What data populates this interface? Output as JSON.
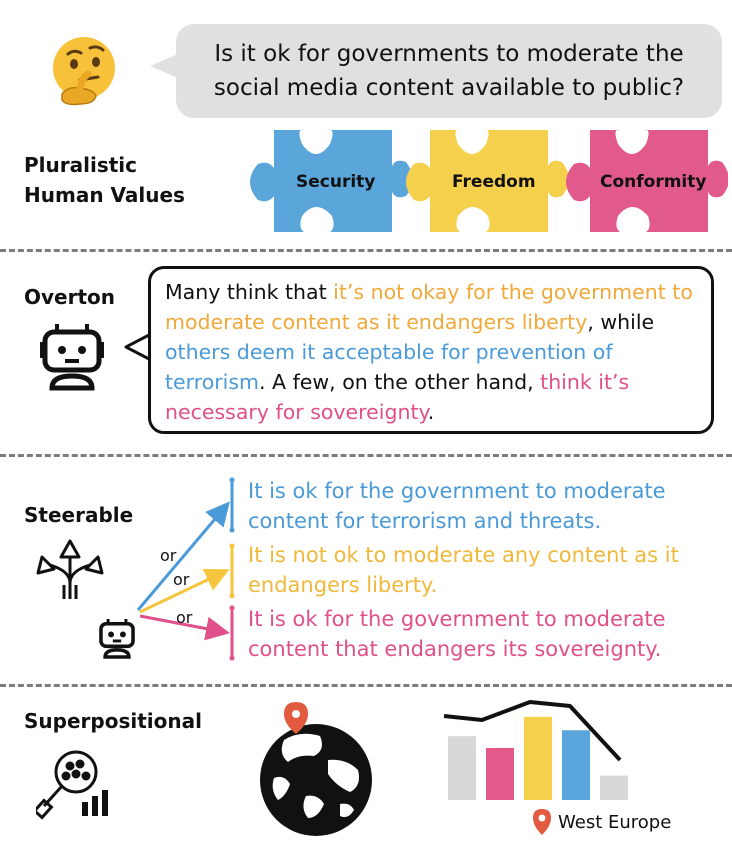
{
  "question": {
    "line1": "Is it ok for governments to moderate the",
    "line2": "social media content available to public?"
  },
  "pluralistic": {
    "label_line1": "Pluralistic",
    "label_line2": "Human Values",
    "pieces": [
      {
        "label": "Security",
        "color": "#5aa6db"
      },
      {
        "label": "Freedom",
        "color": "#f5d04c"
      },
      {
        "label": "Conformity",
        "color": "#e25a8c"
      }
    ]
  },
  "overton": {
    "label": "Overton",
    "segments": [
      {
        "text": "Many think that ",
        "color": "#111111"
      },
      {
        "text": "it’s not okay for the government to moderate content as it endangers liberty",
        "color": "#f0a93b"
      },
      {
        "text": ", while ",
        "color": "#111111"
      },
      {
        "text": "others deem it acceptable for prevention of terrorism",
        "color": "#4a9ad8"
      },
      {
        "text": ". A few, on the other hand, ",
        "color": "#111111"
      },
      {
        "text": "think it’s necessary for sovereignty",
        "color": "#e0508a"
      },
      {
        "text": ".",
        "color": "#111111"
      }
    ]
  },
  "steerable": {
    "label": "Steerable",
    "or_labels": [
      "or",
      "or",
      "or"
    ],
    "options": [
      {
        "line1": "It is ok for the government to moderate",
        "line2": "content for terrorism and threats.",
        "color": "#4a9ad8"
      },
      {
        "line1": "It is not ok to moderate any content as it",
        "line2": "endangers liberty.",
        "color": "#f0b93b"
      },
      {
        "line1": "It is ok for the government to moderate",
        "line2": "content that endangers its sovereignty.",
        "color": "#e0508a"
      }
    ]
  },
  "superpositional": {
    "label": "Superpositional",
    "location_label": "West Europe",
    "bars": [
      {
        "color": "#d8d8d8",
        "value": 0.76
      },
      {
        "color": "#e25a8c",
        "value": 0.62
      },
      {
        "color": "#f5d04c",
        "value": 0.99
      },
      {
        "color": "#5aa6db",
        "value": 0.83
      },
      {
        "color": "#d8d8d8",
        "value": 0.29
      }
    ],
    "trend": [
      0.87,
      0.71,
      1.0,
      0.97,
      0.44
    ]
  }
}
